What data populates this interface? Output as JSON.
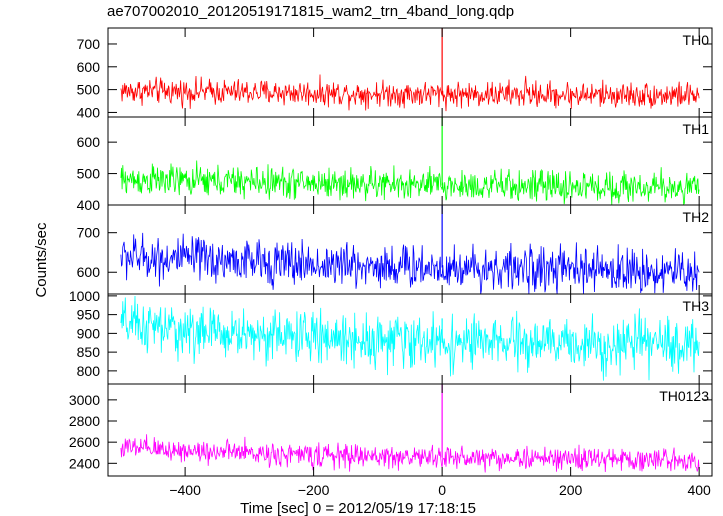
{
  "chart_data": {
    "type": "line",
    "title": "ae707002010_20120519171815_wam2_trn_4band_long.qdp",
    "xlabel": "Time [sec] 0 = 2012/05/19 17:18:15",
    "ylabel": "Counts/sec",
    "xlim": [
      -520,
      420
    ],
    "x_ticks": [
      -400,
      -200,
      0,
      200,
      400
    ],
    "x_tick_labels": [
      "−400",
      "−200",
      "0",
      "200",
      "400"
    ],
    "x_range_data": [
      -500,
      400
    ],
    "grid": false,
    "panels": [
      {
        "name": "TH0",
        "color": "#ff0000",
        "ylim": [
          380,
          770
        ],
        "y_ticks": [
          400,
          500,
          600,
          700
        ],
        "baseline": [
          [
            -500,
            495
          ],
          [
            -200,
            485
          ],
          [
            0,
            480
          ],
          [
            400,
            475
          ]
        ],
        "noise": 28,
        "spike": {
          "x": 0,
          "y": 770
        },
        "peaks": [
          {
            "x": 130,
            "y": 560
          }
        ]
      },
      {
        "name": "TH1",
        "color": "#00ff00",
        "ylim": [
          400,
          680
        ],
        "y_ticks": [
          400,
          500,
          600
        ],
        "baseline": [
          [
            -500,
            480
          ],
          [
            -200,
            470
          ],
          [
            0,
            462
          ],
          [
            400,
            455
          ]
        ],
        "noise": 25,
        "spike": {
          "x": 0,
          "y": 680
        }
      },
      {
        "name": "TH2",
        "color": "#0000ff",
        "ylim": [
          545,
          770
        ],
        "y_ticks": [
          600,
          700
        ],
        "baseline": [
          [
            -500,
            640
          ],
          [
            -200,
            620
          ],
          [
            0,
            612
          ],
          [
            400,
            600
          ]
        ],
        "noise": 28,
        "spike": {
          "x": 0,
          "y": 770
        }
      },
      {
        "name": "TH3",
        "color": "#00ffff",
        "ylim": [
          765,
          1005
        ],
        "y_ticks": [
          800,
          850,
          900,
          950,
          1000
        ],
        "baseline": [
          [
            -500,
            925
          ],
          [
            -400,
            905
          ],
          [
            -200,
            890
          ],
          [
            0,
            875
          ],
          [
            400,
            870
          ]
        ],
        "noise": 34,
        "spike": {
          "x": 0,
          "y": 940
        }
      },
      {
        "name": "TH0123",
        "color": "#ff00ff",
        "ylim": [
          2280,
          3150
        ],
        "y_ticks": [
          2400,
          2600,
          2800,
          3000
        ],
        "baseline": [
          [
            -500,
            2545
          ],
          [
            -200,
            2475
          ],
          [
            0,
            2455
          ],
          [
            400,
            2430
          ]
        ],
        "noise": 55,
        "spike": {
          "x": 0,
          "y": 3150
        }
      }
    ]
  }
}
